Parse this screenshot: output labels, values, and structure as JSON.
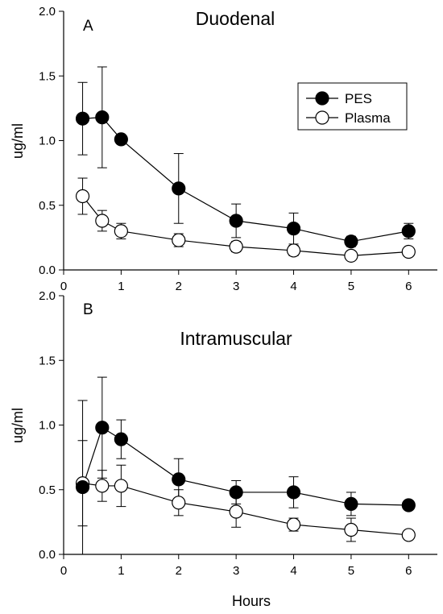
{
  "xlabel": "Hours",
  "chart_data": [
    {
      "type": "line",
      "panel": "A",
      "title": "Duodenal",
      "ylabel": "ug/ml",
      "xlim": [
        0,
        6.5
      ],
      "ylim": [
        0,
        2.0
      ],
      "xticks": [
        0,
        1,
        2,
        3,
        4,
        5,
        6
      ],
      "yticks": [
        0.0,
        0.5,
        1.0,
        1.5,
        2.0
      ],
      "ytick_labels": [
        "0.0",
        "0.5",
        "1.0",
        "1.5",
        "2.0"
      ],
      "legend": "top-right",
      "series": [
        {
          "name": "PES",
          "marker": "filled-circle",
          "x": [
            0.33,
            0.67,
            1,
            2,
            3,
            4,
            5,
            6
          ],
          "y": [
            1.17,
            1.18,
            1.01,
            0.63,
            0.38,
            0.32,
            0.22,
            0.3
          ],
          "err": [
            0.28,
            0.39,
            0.0,
            0.27,
            0.13,
            0.12,
            0.04,
            0.06
          ]
        },
        {
          "name": "Plasma",
          "marker": "open-circle",
          "x": [
            0.33,
            0.67,
            1,
            2,
            3,
            4,
            5,
            6
          ],
          "y": [
            0.57,
            0.38,
            0.3,
            0.23,
            0.18,
            0.15,
            0.11,
            0.14
          ],
          "err": [
            0.14,
            0.08,
            0.06,
            0.05,
            0.04,
            0.04,
            0.02,
            0.02
          ]
        }
      ]
    },
    {
      "type": "line",
      "panel": "B",
      "title": "Intramuscular",
      "ylabel": "ug/ml",
      "xlim": [
        0,
        6.5
      ],
      "ylim": [
        0,
        2.0
      ],
      "xticks": [
        0,
        1,
        2,
        3,
        4,
        5,
        6
      ],
      "yticks": [
        0.0,
        0.5,
        1.0,
        1.5,
        2.0
      ],
      "ytick_labels": [
        "0.0",
        "0.5",
        "1.0",
        "1.5",
        "2.0"
      ],
      "series": [
        {
          "name": "PES",
          "marker": "filled-circle",
          "x": [
            0.33,
            0.67,
            1,
            2,
            3,
            4,
            5,
            6
          ],
          "y": [
            0.52,
            0.98,
            0.89,
            0.58,
            0.48,
            0.48,
            0.39,
            0.38
          ],
          "err": [
            0.67,
            0.39,
            0.15,
            0.16,
            0.09,
            0.12,
            0.09,
            0.0
          ]
        },
        {
          "name": "Plasma",
          "marker": "open-circle",
          "x": [
            0.33,
            0.67,
            1,
            2,
            3,
            4,
            5,
            6
          ],
          "y": [
            0.55,
            0.53,
            0.53,
            0.4,
            0.33,
            0.23,
            0.19,
            0.15
          ],
          "err": [
            0.33,
            0.12,
            0.16,
            0.1,
            0.12,
            0.05,
            0.09,
            0.03
          ]
        }
      ]
    }
  ]
}
